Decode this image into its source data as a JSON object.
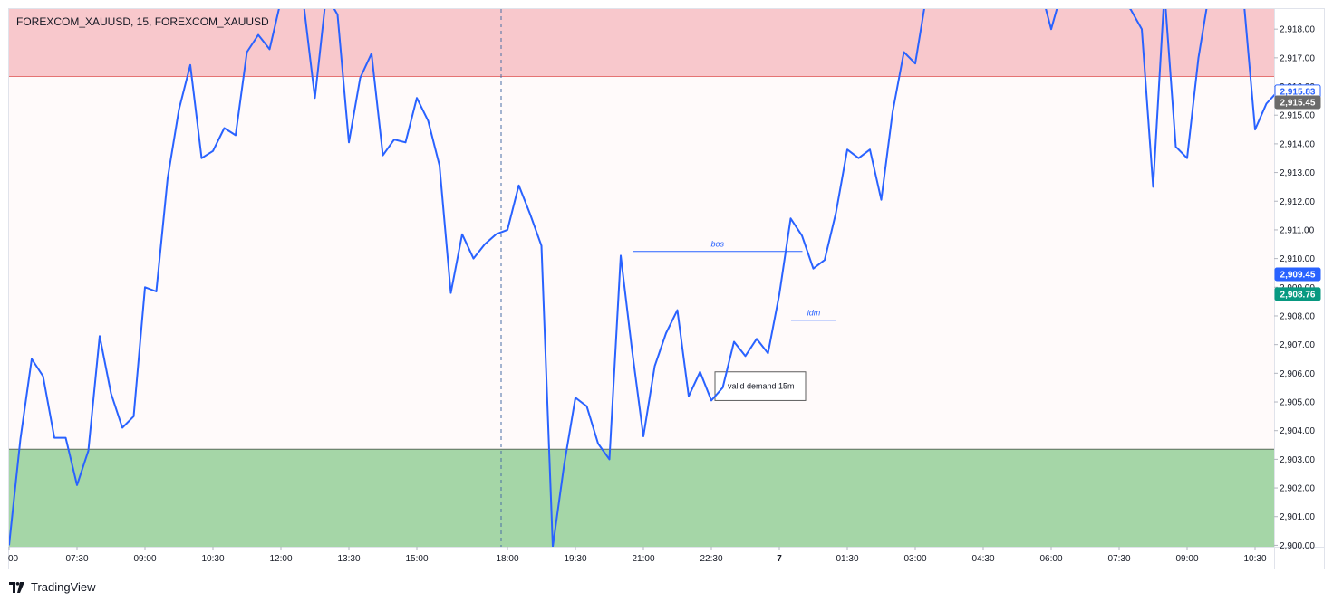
{
  "chart_data": {
    "type": "line",
    "title": "FOREXCOM_XAUUSD, 15, FOREXCOM_XAUUSD",
    "symbol": "FOREXCOM_XAUUSD",
    "interval": "15",
    "ylim": [
      2899.95,
      2918.7
    ],
    "y_ticks": [
      "2,900.00",
      "2,901.00",
      "2,902.00",
      "2,903.00",
      "2,904.00",
      "2,905.00",
      "2,906.00",
      "2,907.00",
      "2,908.00",
      "2,909.00",
      "2,910.00",
      "2,911.00",
      "2,912.00",
      "2,913.00",
      "2,914.00",
      "2,915.00",
      "2,916.00",
      "2,917.00",
      "2,918.00"
    ],
    "x_ticks": [
      {
        "label": "00",
        "i": 0
      },
      {
        "label": "07:30",
        "i": 6
      },
      {
        "label": "09:00",
        "i": 12
      },
      {
        "label": "10:30",
        "i": 18
      },
      {
        "label": "12:00",
        "i": 24
      },
      {
        "label": "13:30",
        "i": 30
      },
      {
        "label": "15:00",
        "i": 36
      },
      {
        "label": "18:00",
        "i": 44
      },
      {
        "label": "19:30",
        "i": 50
      },
      {
        "label": "21:00",
        "i": 56
      },
      {
        "label": "22:30",
        "i": 62
      },
      {
        "label": "7",
        "i": 68
      },
      {
        "label": "01:30",
        "i": 74
      },
      {
        "label": "03:00",
        "i": 80
      },
      {
        "label": "04:30",
        "i": 86
      },
      {
        "label": "06:00",
        "i": 92
      },
      {
        "label": "07:30",
        "i": 98
      },
      {
        "label": "09:00",
        "i": 104
      },
      {
        "label": "10:30",
        "i": 110
      }
    ],
    "series": [
      {
        "color": "#2962ff",
        "values": [
          2900.0,
          2903.7,
          2906.5,
          2905.9,
          2903.75,
          2903.75,
          2902.1,
          2903.3,
          2907.3,
          2905.3,
          2904.1,
          2904.5,
          2909.0,
          2908.85,
          2912.8,
          2915.2,
          2916.75,
          2913.5,
          2913.75,
          2914.55,
          2914.3,
          2917.2,
          2917.8,
          2917.3,
          2919.0,
          2919.4,
          2918.9,
          2915.6,
          2919.2,
          2918.5,
          2914.05,
          2916.3,
          2917.15,
          2913.6,
          2914.15,
          2914.05,
          2915.6,
          2914.8,
          2913.25,
          2908.8,
          2910.85,
          2910.0,
          2910.5,
          2910.85,
          2911.0,
          2912.55,
          2911.55,
          2910.45,
          2899.95,
          2902.8,
          2905.15,
          2904.85,
          2903.55,
          2903.0,
          2910.1,
          2906.8,
          2903.8,
          2906.25,
          2907.4,
          2908.2,
          2905.2,
          2906.05,
          2905.05,
          2905.5,
          2907.1,
          2906.6,
          2907.2,
          2906.7,
          2908.75,
          2911.4,
          2910.8,
          2909.65,
          2909.95,
          2911.6,
          2913.8,
          2913.5,
          2913.8,
          2912.05,
          2915.1,
          2917.2,
          2916.8,
          2919.2,
          2919.4,
          2919.3,
          2919.2,
          2919.4,
          2919.2,
          2919.5,
          2919.0,
          2919.4,
          2919.3,
          2919.5,
          2918.0,
          2919.4,
          2919.2,
          2919.5,
          2919.4,
          2919.2,
          2919.0,
          2918.7,
          2918.0,
          2912.5,
          2919.3,
          2913.9,
          2913.5,
          2917.0,
          2919.4,
          2919.3,
          2919.5,
          2919.0,
          2914.5,
          2915.4,
          2915.83
        ]
      }
    ],
    "zones": [
      {
        "kind": "supply",
        "from": 2916.35,
        "to": 2918.7,
        "color": "#f8c8cc"
      },
      {
        "kind": "demand",
        "from": 2899.95,
        "to": 2903.35,
        "color": "#a5d6a7"
      }
    ],
    "annotations": [
      {
        "text": "bos",
        "price": 2910.25,
        "i_from": 54,
        "i_to": 69,
        "color": "#2962ff"
      },
      {
        "text": "idm",
        "price": 2907.85,
        "i_from": 68,
        "i_to": 72,
        "color": "#2962ff"
      },
      {
        "text": "valid demand 15m",
        "box": true,
        "i_from": 62,
        "i_to": 70,
        "price_top": 2906.05,
        "price_bottom": 2905.05
      }
    ],
    "session_break_i": 44,
    "price_badges": [
      {
        "value": "2,915.83",
        "price": 2915.83,
        "bg": "#ffffff",
        "fg": "#2962ff",
        "border": "#2962ff"
      },
      {
        "value": "2,915.45",
        "price": 2915.45,
        "bg": "#6b6b6b",
        "fg": "#ffffff",
        "border": "#6b6b6b"
      },
      {
        "value": "2,909.45",
        "price": 2909.45,
        "bg": "#2962ff",
        "fg": "#ffffff",
        "border": "#2962ff"
      },
      {
        "value": "2,908.76",
        "price": 2908.76,
        "bg": "#089981",
        "fg": "#ffffff",
        "border": "#089981"
      }
    ],
    "grid": false,
    "legend": "top-left"
  },
  "footer": {
    "brand": "TradingView"
  }
}
